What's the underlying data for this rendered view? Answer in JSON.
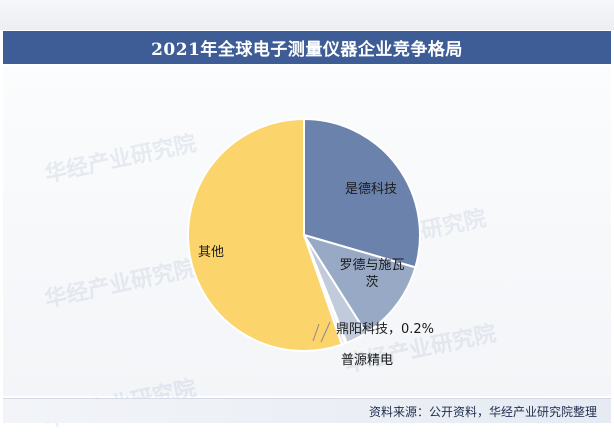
{
  "header": {
    "title": "2021年全球电子测量仪器企业竞争格局"
  },
  "watermark": {
    "text": "华经产业研究院"
  },
  "footer": {
    "source": "资料来源：公开资料，华经产业研究院整理"
  },
  "colors": {
    "title_bar": "#3e5d96",
    "slice_1": "#6b82ad",
    "slice_2": "#98a9c6",
    "slice_3": "#c1cbdc",
    "slice_4": "#d6dce6",
    "slice_5": "#e4e7ec",
    "slice_other": "#fbd46b"
  },
  "chart_data": {
    "type": "pie",
    "title": "2021年全球电子测量仪器企业竞争格局",
    "start_angle_deg": 0,
    "direction": "clockwise",
    "slices": [
      {
        "label": "是德科技",
        "value": 29.5,
        "color": "#6b82ad"
      },
      {
        "label": "罗德与施瓦茨",
        "value": 11.5,
        "color": "#98a9c6"
      },
      {
        "label": "",
        "value": 3.0,
        "color": "#c1cbdc"
      },
      {
        "label": "鼎阳科技，0.2%",
        "value": 0.2,
        "color": "#d6dce6"
      },
      {
        "label": "普源精电",
        "value": 0.5,
        "color": "#e4e7ec"
      },
      {
        "label": "其他",
        "value": 55.3,
        "color": "#fbd46b"
      }
    ]
  }
}
